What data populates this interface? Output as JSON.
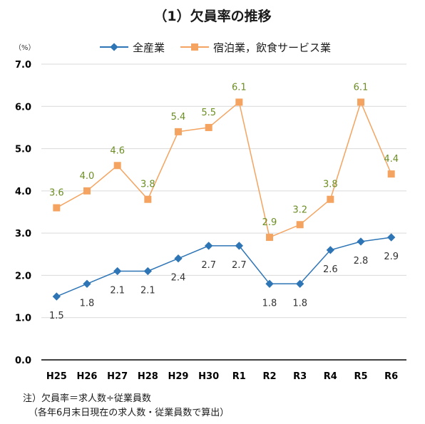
{
  "title": "（1）欠員率の推移",
  "note": {
    "line1": "注）欠員率＝求人数÷従業員数",
    "line2": "（各年6月末日現在の求人数・従業員数で算出）"
  },
  "colors": {
    "series_all": "#2E75B6",
    "series_hotel": "#F4A460",
    "label_all": "#333333",
    "label_hotel": "#6B8E23",
    "grid": "#d9d9d9",
    "axis": "#000000"
  },
  "chart_data": {
    "type": "line",
    "title": "（1）欠員率の推移",
    "y_unit": "（%）",
    "ylim": [
      0,
      7
    ],
    "yticks": [
      "0.0",
      "1.0",
      "2.0",
      "3.0",
      "4.0",
      "5.0",
      "6.0",
      "7.0"
    ],
    "categories": [
      "H25",
      "H26",
      "H27",
      "H28",
      "H29",
      "H30",
      "R1",
      "R2",
      "R3",
      "R4",
      "R5",
      "R6"
    ],
    "grid": true,
    "legend": "top",
    "series": [
      {
        "name": "全産業",
        "marker": "diamond",
        "values": [
          1.5,
          1.8,
          2.1,
          2.1,
          2.4,
          2.7,
          2.7,
          1.8,
          1.8,
          2.6,
          2.8,
          2.9
        ],
        "labels": [
          "1.5",
          "1.8",
          "2.1",
          "2.1",
          "2.4",
          "2.7",
          "2.7",
          "1.8",
          "1.8",
          "2.6",
          "2.8",
          "2.9"
        ]
      },
      {
        "name": "宿泊業，飲食サービス業",
        "marker": "square",
        "values": [
          3.6,
          4.0,
          4.6,
          3.8,
          5.4,
          5.5,
          6.1,
          2.9,
          3.2,
          3.8,
          6.1,
          4.4
        ],
        "labels": [
          "3.6",
          "4.0",
          "4.6",
          "3.8",
          "5.4",
          "5.5",
          "6.1",
          "2.9",
          "3.2",
          "3.8",
          "6.1",
          "4.4"
        ]
      }
    ]
  }
}
